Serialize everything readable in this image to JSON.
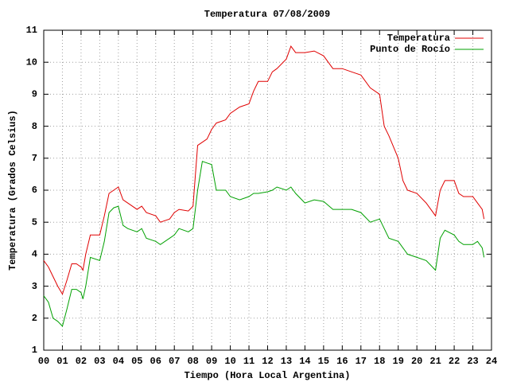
{
  "chart_data": {
    "type": "line",
    "title": "Temperatura 07/08/2009",
    "xlabel": "Tiempo (Hora Local Argentina)",
    "ylabel": "Temperatura (Grados Celsius)",
    "x": [
      0,
      0.25,
      0.5,
      0.75,
      1,
      1.25,
      1.5,
      1.75,
      2,
      2.1,
      2.25,
      2.5,
      3,
      3.25,
      3.5,
      3.75,
      4,
      4.25,
      4.5,
      5,
      5.25,
      5.5,
      6,
      6.25,
      6.75,
      7,
      7.25,
      7.75,
      8,
      8.25,
      8.5,
      8.75,
      9,
      9.25,
      9.75,
      10,
      10.5,
      11,
      11.25,
      11.5,
      12,
      12.25,
      12.5,
      13,
      13.25,
      13.5,
      14,
      14.5,
      15,
      15.5,
      16,
      16.5,
      17,
      17.5,
      18,
      18.25,
      18.5,
      19,
      19.25,
      19.5,
      20,
      20.5,
      21,
      21.25,
      21.5,
      22,
      22.25,
      22.5,
      23,
      23.25,
      23.5,
      23.6
    ],
    "series": [
      {
        "name": "Temperatura",
        "color": "#e00000",
        "values": [
          3.8,
          3.6,
          3.3,
          3.0,
          2.75,
          3.2,
          3.7,
          3.7,
          3.6,
          3.5,
          4.0,
          4.6,
          4.6,
          5.2,
          5.9,
          6.0,
          6.1,
          5.7,
          5.6,
          5.4,
          5.5,
          5.3,
          5.2,
          5.0,
          5.1,
          5.3,
          5.4,
          5.35,
          5.5,
          7.4,
          7.5,
          7.6,
          7.9,
          8.1,
          8.2,
          8.4,
          8.6,
          8.7,
          9.1,
          9.4,
          9.4,
          9.7,
          9.8,
          10.1,
          10.5,
          10.3,
          10.3,
          10.35,
          10.2,
          9.8,
          9.8,
          9.7,
          9.6,
          9.2,
          9.0,
          8.0,
          7.7,
          7.0,
          6.3,
          6.0,
          5.9,
          5.6,
          5.2,
          6.0,
          6.3,
          6.3,
          5.9,
          5.8,
          5.8,
          5.6,
          5.4,
          5.1
        ]
      },
      {
        "name": "Punto de Rocío",
        "color": "#00a000",
        "values": [
          2.7,
          2.5,
          2.0,
          1.9,
          1.75,
          2.3,
          2.9,
          2.9,
          2.8,
          2.6,
          3.0,
          3.9,
          3.8,
          4.4,
          5.3,
          5.45,
          5.5,
          4.9,
          4.8,
          4.7,
          4.8,
          4.5,
          4.4,
          4.3,
          4.5,
          4.6,
          4.8,
          4.7,
          4.8,
          6.0,
          6.9,
          6.85,
          6.8,
          6.0,
          6.0,
          5.8,
          5.7,
          5.8,
          5.9,
          5.9,
          5.95,
          6.0,
          6.1,
          6.0,
          6.1,
          5.9,
          5.6,
          5.7,
          5.65,
          5.4,
          5.4,
          5.4,
          5.3,
          5.0,
          5.1,
          4.8,
          4.5,
          4.4,
          4.2,
          4.0,
          3.9,
          3.8,
          3.5,
          4.5,
          4.75,
          4.6,
          4.4,
          4.3,
          4.3,
          4.4,
          4.2,
          3.9
        ]
      }
    ],
    "xlim": [
      0,
      24
    ],
    "xticks": [
      {
        "value": 0,
        "label": "00"
      },
      {
        "value": 1,
        "label": "01"
      },
      {
        "value": 2,
        "label": "02"
      },
      {
        "value": 3,
        "label": "03"
      },
      {
        "value": 4,
        "label": "04"
      },
      {
        "value": 5,
        "label": "05"
      },
      {
        "value": 6,
        "label": "06"
      },
      {
        "value": 7,
        "label": "07"
      },
      {
        "value": 8,
        "label": "08"
      },
      {
        "value": 9,
        "label": "09"
      },
      10,
      11,
      12,
      13,
      14,
      15,
      16,
      17,
      18,
      19,
      20,
      21,
      22,
      23,
      24
    ],
    "ylim": [
      1,
      11
    ],
    "yticks": [
      1,
      2,
      3,
      4,
      5,
      6,
      7,
      8,
      9,
      10,
      11
    ],
    "grid": true,
    "legend": "top-right"
  }
}
